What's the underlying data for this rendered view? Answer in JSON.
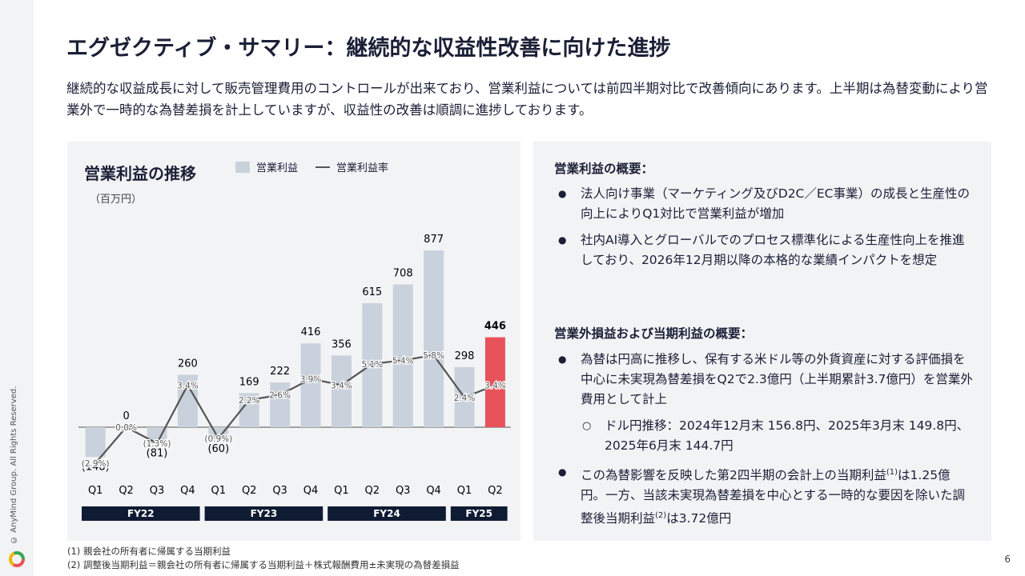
{
  "title": "エグゼクティブ・サマリー：継続的な収益性改善に向けた進捗",
  "lead": "継続的な収益成長に対して販売管理費用のコントロールが出来ており、営業利益については前四半期対比で改善傾向にあります。上半期は為替変動により営業外で一時的な為替差損を計上していますが、収益性の改善は順調に進捗しております。",
  "copyright": "© AnyMind Group. All Rights Reserved.",
  "page_number": "6",
  "chart_data": {
    "type": "bar",
    "title": "営業利益の推移",
    "unit": "（百万円）",
    "legend": [
      "営業利益",
      "営業利益率"
    ],
    "categories": [
      "Q1",
      "Q2",
      "Q3",
      "Q4",
      "Q1",
      "Q2",
      "Q3",
      "Q4",
      "Q1",
      "Q2",
      "Q3",
      "Q4",
      "Q1",
      "Q2"
    ],
    "value_labels": [
      "(148)",
      "0",
      "(81)",
      "260",
      "(60)",
      "169",
      "222",
      "416",
      "356",
      "615",
      "708",
      "877",
      "298",
      "446"
    ],
    "values": [
      -148,
      0,
      -81,
      260,
      -60,
      169,
      222,
      416,
      356,
      615,
      708,
      877,
      298,
      446
    ],
    "margin_labels": [
      "(2.9%)",
      "0.0%",
      "(1.3%)",
      "3.4%",
      "(0.9%)",
      "2.2%",
      "2.6%",
      "3.9%",
      "3.4%",
      "5.1%",
      "5.4%",
      "5.8%",
      "2.4%",
      "3.4%"
    ],
    "margins": [
      -2.9,
      0.0,
      -1.3,
      3.4,
      -0.9,
      2.2,
      2.6,
      3.9,
      3.4,
      5.1,
      5.4,
      5.8,
      2.4,
      3.4
    ],
    "fiscal_years": [
      {
        "label": "FY22",
        "span": 4
      },
      {
        "label": "FY23",
        "span": 4
      },
      {
        "label": "FY24",
        "span": 4
      },
      {
        "label": "FY25",
        "span": 2
      }
    ],
    "colors": {
      "bar": "#c9d2dc",
      "highlight": "#e8525a",
      "line": "#555555",
      "fy_band": "#0f1b33"
    }
  },
  "notes": {
    "section1_title": "営業利益の概要：",
    "section1_items": [
      "法人向け事業（マーケティング及びD2C／EC事業）の成長と生産性の向上によりQ1対比で営業利益が増加",
      "社内AI導入とグローバルでのプロセス標準化による生産性向上を推進しており、2026年12月期以降の本格的な業績インパクトを想定"
    ],
    "section2_title": "営業外損益および当期利益の概要：",
    "section2_item1": "為替は円高に推移し、保有する米ドル等の外貨資産に対する評価損を中心に未実現為替差損をQ2で2.3億円（上半期累計3.7億円）を営業外費用として計上",
    "section2_sub": "ドル円推移：2024年12月末 156.8円、2025年3月末 149.8円、2025年6月末 144.7円",
    "section2_item2_a": "この為替影響を反映した第2四半期の会計上の当期利益",
    "section2_item2_sup1": "(1)",
    "section2_item2_b": "は1.25億円。一方、当該未実現為替差損を中心とする一時的な要因を除いた調整後当期利益",
    "section2_item2_sup2": "(2)",
    "section2_item2_c": "は3.72億円"
  },
  "footnotes": [
    "(1) 親会社の所有者に帰属する当期利益",
    "(2) 調整後当期利益＝親会社の所有者に帰属する当期利益＋株式報酬費用±未実現の為替差損益"
  ]
}
